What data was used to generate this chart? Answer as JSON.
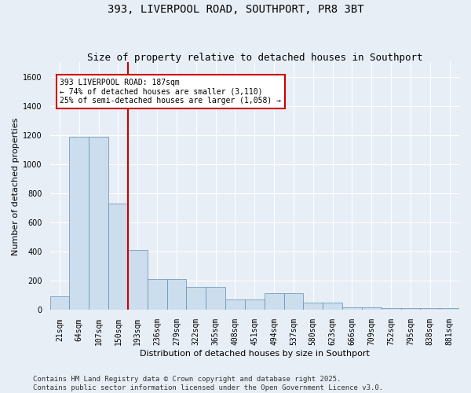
{
  "title": "393, LIVERPOOL ROAD, SOUTHPORT, PR8 3BT",
  "subtitle": "Size of property relative to detached houses in Southport",
  "xlabel": "Distribution of detached houses by size in Southport",
  "ylabel": "Number of detached properties",
  "categories": [
    "21sqm",
    "64sqm",
    "107sqm",
    "150sqm",
    "193sqm",
    "236sqm",
    "279sqm",
    "322sqm",
    "365sqm",
    "408sqm",
    "451sqm",
    "494sqm",
    "537sqm",
    "580sqm",
    "623sqm",
    "666sqm",
    "709sqm",
    "752sqm",
    "795sqm",
    "838sqm",
    "881sqm"
  ],
  "values": [
    95,
    1190,
    1190,
    730,
    415,
    215,
    215,
    160,
    160,
    70,
    70,
    115,
    115,
    50,
    50,
    17,
    17,
    13,
    13,
    13,
    13
  ],
  "bar_color": "#ccdded",
  "bar_edge_color": "#6090b0",
  "vline_x": 3.5,
  "vline_color": "#cc0000",
  "ylim": [
    0,
    1700
  ],
  "yticks": [
    0,
    200,
    400,
    600,
    800,
    1000,
    1200,
    1400,
    1600
  ],
  "annotation_text": "393 LIVERPOOL ROAD: 187sqm\n← 74% of detached houses are smaller (3,110)\n25% of semi-detached houses are larger (1,058) →",
  "box_facecolor": "#ffffff",
  "box_edgecolor": "#cc0000",
  "footer_line1": "Contains HM Land Registry data © Crown copyright and database right 2025.",
  "footer_line2": "Contains public sector information licensed under the Open Government Licence v3.0.",
  "bg_color": "#e8eef6",
  "plot_bg_color": "#e8eef6",
  "title_fontsize": 10,
  "subtitle_fontsize": 9,
  "axis_label_fontsize": 8,
  "tick_fontsize": 7,
  "annotation_fontsize": 7,
  "footer_fontsize": 6.5,
  "grid_color": "#ffffff"
}
